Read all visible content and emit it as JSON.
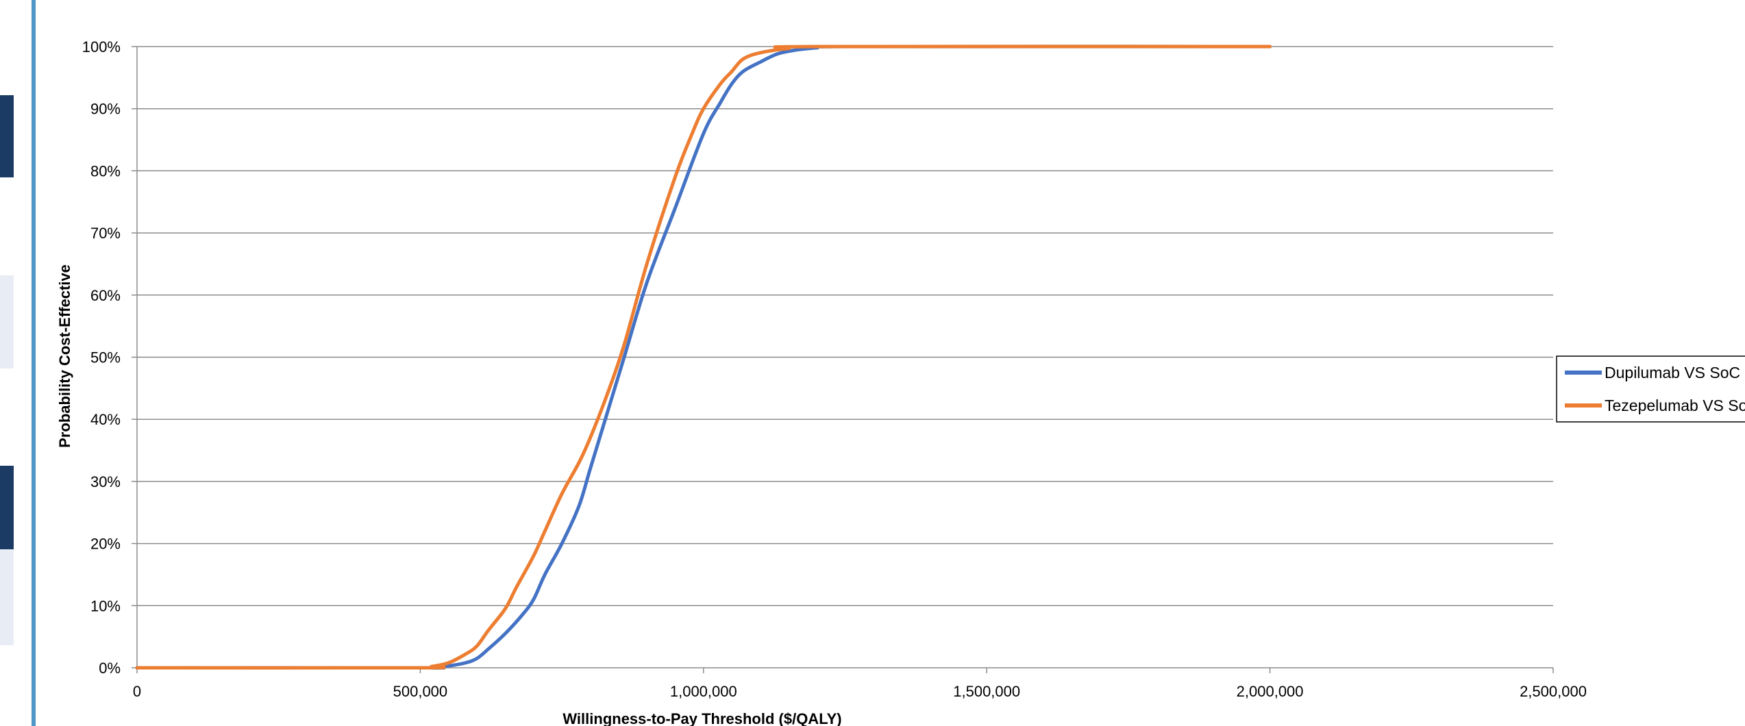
{
  "chart_data": {
    "type": "line",
    "title": "",
    "xlabel": "Willingness-to-Pay Threshold ($/QALY)",
    "ylabel": "Probability Cost-Effective",
    "xlim": [
      0,
      2500000
    ],
    "ylim": [
      0,
      1
    ],
    "x_ticks": [
      "0",
      "500,000",
      "1,000,000",
      "1,500,000",
      "2,000,000",
      "2,500,000"
    ],
    "y_ticks": [
      "0%",
      "10%",
      "20%",
      "30%",
      "40%",
      "50%",
      "60%",
      "70%",
      "80%",
      "90%",
      "100%"
    ],
    "grid": "horizontal",
    "legend_position": "right",
    "series": [
      {
        "name": "Dupilumab VS SoC",
        "color": "#4472C4",
        "x": [
          0,
          500000,
          520000,
          550000,
          580000,
          600000,
          620000,
          650000,
          680000,
          700000,
          720000,
          750000,
          780000,
          800000,
          830000,
          860000,
          900000,
          950000,
          1000000,
          1030000,
          1050000,
          1070000,
          1100000,
          1130000,
          1160000,
          1200000,
          1250000,
          2000000
        ],
        "y": [
          0,
          0,
          0,
          0.003,
          0.008,
          0.015,
          0.03,
          0.055,
          0.085,
          0.11,
          0.15,
          0.2,
          0.26,
          0.32,
          0.41,
          0.5,
          0.62,
          0.74,
          0.86,
          0.91,
          0.94,
          0.96,
          0.975,
          0.988,
          0.994,
          0.998,
          1.0,
          1.0
        ]
      },
      {
        "name": "Tezepelumab VS SoC",
        "color": "#ED7D31",
        "x": [
          0,
          500000,
          520000,
          550000,
          580000,
          600000,
          620000,
          650000,
          670000,
          700000,
          720000,
          750000,
          780000,
          800000,
          830000,
          860000,
          900000,
          950000,
          980000,
          1000000,
          1030000,
          1050000,
          1070000,
          1100000,
          1150000,
          1200000,
          2000000
        ],
        "y": [
          0,
          0,
          0.002,
          0.008,
          0.022,
          0.035,
          0.06,
          0.095,
          0.13,
          0.18,
          0.22,
          0.28,
          0.33,
          0.37,
          0.44,
          0.52,
          0.65,
          0.79,
          0.86,
          0.9,
          0.94,
          0.96,
          0.98,
          0.99,
          0.997,
          1.0,
          1.0
        ]
      }
    ]
  }
}
